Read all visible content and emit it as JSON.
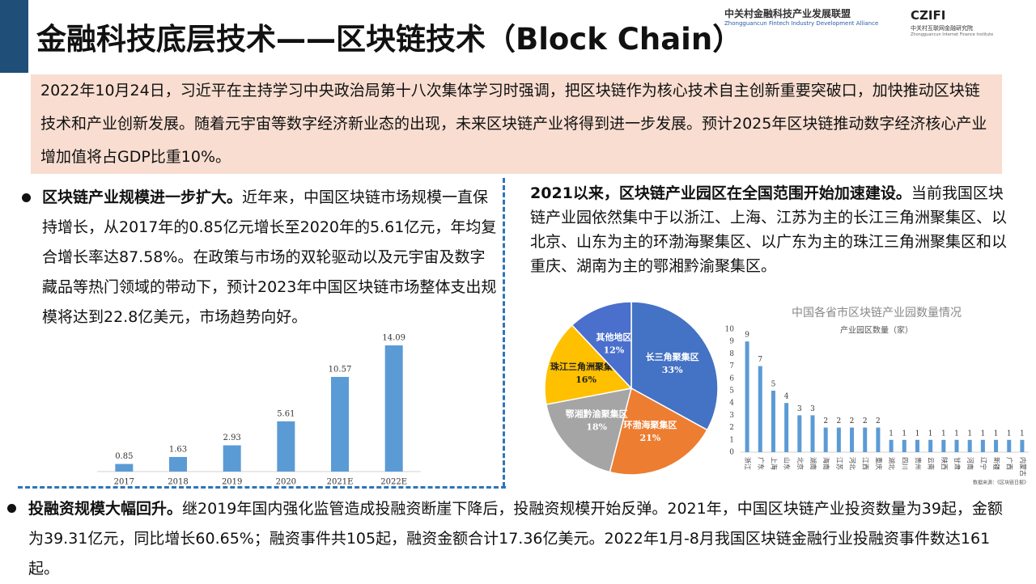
{
  "header": {
    "title": "金融科技底层技术——区块链技术（Block Chain）",
    "logo1_cn": "中关村金融科技产业发展联盟",
    "logo1_en": "Zhongguancun Fintech Industry Development Alliance",
    "logo2_mark": "CZIFI",
    "logo2_cn": "中关村互联网金融研究院",
    "logo2_en": "Zhongguancun Internet Finance Institute"
  },
  "intro": "2022年10月24日，习近平在主持学习中央政治局第十八次集体学习时强调，把区块链作为核心技术自主创新重要突破口，加快推动区块链技术和产业创新发展。随着元宇宙等数字经济新业态的出现，未来区块链产业将得到进一步发展。预计2025年区块链推动数字经济核心产业增加值将占GDP比重10%。",
  "left_text": {
    "lead": "区块链产业规模进一步扩大。",
    "body": "近年来，中国区块链市场规模一直保持增长，从2017年的0.85亿元增长至2020年的5.61亿元，年均复合增长率达87.58%。在政策与市场的双轮驱动以及元宇宙及数字藏品等热门领域的带动下，预计2023年中国区块链市场整体支出规模将达到22.8亿美元，市场趋势向好。"
  },
  "right_text": {
    "lead": "2021以来，区块链产业园区在全国范围开始加速建设。",
    "body": "当前我国区块链产业园依然集中于以浙江、上海、江苏为主的长江三角洲聚集区、以北京、山东为主的环渤海聚集区、以广东为主的珠江三角洲聚集区和以重庆、湖南为主的鄂湘黔渝聚集区。"
  },
  "bottom_text": {
    "lead": "投融资规模大幅回升。",
    "body": "继2019年国内强化监管造成投融资断崖下降后，投融资规模开始反弹。2021年，中国区块链产业投资数量为39起，金额为39.31亿元，同比增长60.65%；融资事件共105起，融资金额合计17.36亿美元。2022年1月-8月我国区块链金融行业投融资事件数达161起。"
  },
  "chart_data": [
    {
      "type": "bar",
      "categories": [
        "2017",
        "2018",
        "2019",
        "2020",
        "2021E",
        "2022E"
      ],
      "values": [
        0.85,
        1.63,
        2.93,
        5.61,
        10.57,
        14.09
      ],
      "color": "#5b9bd5"
    },
    {
      "type": "pie",
      "categories": [
        "长三角聚集区",
        "环渤海聚集区",
        "鄂湘黔渝聚集区",
        "珠江三角洲聚集区",
        "其他地区"
      ],
      "values": [
        33,
        21,
        18,
        16,
        12
      ],
      "value_labels": [
        "33%",
        "21%",
        "18%",
        "16%",
        "12%"
      ],
      "colors": [
        "#4472c4",
        "#ed7d31",
        "#a5a5a5",
        "#ffc000",
        "#4a6fcc"
      ]
    },
    {
      "type": "bar",
      "title": "中国各省市区块链产业园数量情况",
      "ylabel": "产业园区数量（家）",
      "source": "数据来源：《区块链日报》",
      "categories": [
        "浙江",
        "广东",
        "上海",
        "山东",
        "北京",
        "湖南",
        "海南",
        "江苏",
        "河北",
        "江西",
        "重庆",
        "湖北",
        "四川",
        "贵州",
        "云南",
        "陕西",
        "甘肃",
        "河南",
        "辽宁",
        "新疆",
        "广西",
        "内蒙古"
      ],
      "values": [
        9,
        7,
        5,
        4,
        3,
        3,
        2,
        2,
        2,
        2,
        2,
        1,
        1,
        1,
        1,
        1,
        1,
        1,
        1,
        1,
        1,
        1
      ],
      "color": "#5b9bd5",
      "ylim": [
        0,
        10
      ],
      "yticks": [
        0,
        1,
        2,
        3,
        4,
        5,
        6,
        7,
        8,
        9,
        10
      ]
    }
  ]
}
